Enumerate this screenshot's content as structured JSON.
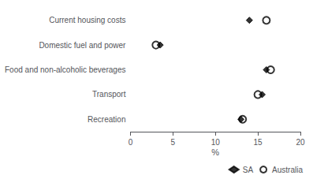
{
  "chart_data": {
    "type": "dot",
    "categories": [
      "Current housing costs",
      "Domestic fuel and power",
      "Food and non-alcoholic beverages",
      "Transport",
      "Recreation"
    ],
    "series": [
      {
        "name": "SA",
        "color": "#000000",
        "marker": "diamond",
        "values": [
          14.0,
          3.5,
          16.0,
          15.5,
          13.0
        ]
      },
      {
        "name": "Australia",
        "color": "#000000",
        "marker": "circle_open",
        "values": [
          16.0,
          3.0,
          16.5,
          15.0,
          13.2
        ]
      }
    ],
    "xlabel": "%",
    "xlim": [
      0,
      20
    ],
    "xticks": [
      0,
      5,
      10,
      15,
      20
    ],
    "grid": false,
    "legend": "lower right"
  }
}
